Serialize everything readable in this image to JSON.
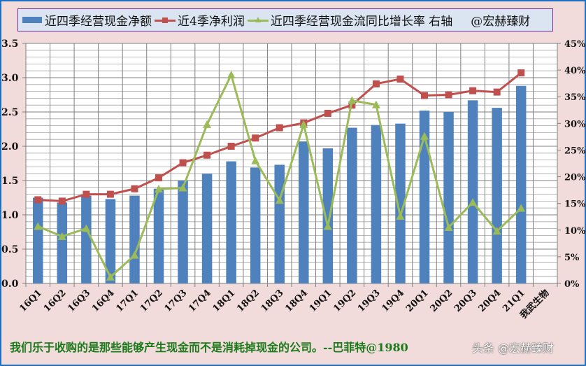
{
  "chart_data": {
    "type": "bar+line",
    "title": "",
    "categories": [
      "16Q1",
      "16Q2",
      "16Q3",
      "16Q4",
      "17Q1",
      "17Q2",
      "17Q3",
      "17Q4",
      "18Q1",
      "18Q2",
      "18Q3",
      "18Q4",
      "19Q1",
      "19Q2",
      "19Q3",
      "19Q4",
      "20Q1",
      "20Q2",
      "20Q3",
      "20Q4",
      "21Q1",
      "我武生物"
    ],
    "series": [
      {
        "name": "近四季经营现金净额",
        "type": "bar",
        "axis": "left",
        "color": "#4f81bd",
        "values": [
          1.25,
          1.18,
          1.28,
          1.23,
          1.28,
          1.38,
          1.5,
          1.6,
          1.78,
          1.69,
          1.73,
          2.07,
          1.97,
          2.27,
          2.31,
          2.33,
          2.52,
          2.5,
          2.67,
          2.56,
          2.88,
          null
        ]
      },
      {
        "name": "近4季净利润",
        "type": "line",
        "axis": "left",
        "marker": "square",
        "color": "#c0504d",
        "values": [
          1.22,
          1.2,
          1.3,
          1.3,
          1.38,
          1.54,
          1.76,
          1.87,
          2.0,
          2.12,
          2.27,
          2.34,
          2.48,
          2.6,
          2.91,
          2.98,
          2.74,
          2.75,
          2.81,
          2.79,
          3.07,
          null
        ]
      },
      {
        "name": "近四季经营现金流同比增长率 右轴",
        "type": "line",
        "axis": "right",
        "marker": "triangle",
        "color": "#9bbb59",
        "values": [
          10.7,
          8.8,
          10.3,
          1.2,
          5.3,
          17.7,
          17.9,
          29.8,
          39.1,
          23.0,
          15.6,
          29.8,
          10.7,
          34.3,
          33.5,
          12.6,
          27.6,
          10.5,
          15.2,
          9.8,
          14.1,
          null
        ]
      }
    ],
    "left_axis": {
      "min": 0,
      "max": 3.5,
      "step": 0.5,
      "ticks": [
        "0.0",
        "0.5",
        "1.0",
        "1.5",
        "2.0",
        "2.5",
        "3.0",
        "3.5"
      ]
    },
    "right_axis": {
      "min": 0,
      "max": 45,
      "step": 5,
      "ticks": [
        "0%",
        "5%",
        "10%",
        "15%",
        "20%",
        "25%",
        "30%",
        "35%",
        "40%",
        "45%"
      ]
    },
    "grid": true,
    "legend_position": "top"
  },
  "legend": {
    "items": [
      {
        "label": "近四季经营现金净额",
        "color": "#4f81bd",
        "kind": "bar"
      },
      {
        "label": "近4季净利润",
        "color": "#c0504d",
        "kind": "line-square"
      },
      {
        "label": "近四季经营现金流同比增长率 右轴",
        "color": "#9bbb59",
        "kind": "line-triangle"
      }
    ],
    "credit": "@宏赫臻财"
  },
  "footer": {
    "quote": "我们乐于收购的是那些能够产生现金而不是消耗掉现金的公司。--巴菲特@1980",
    "watermark": "头条 @宏赫臻财"
  }
}
